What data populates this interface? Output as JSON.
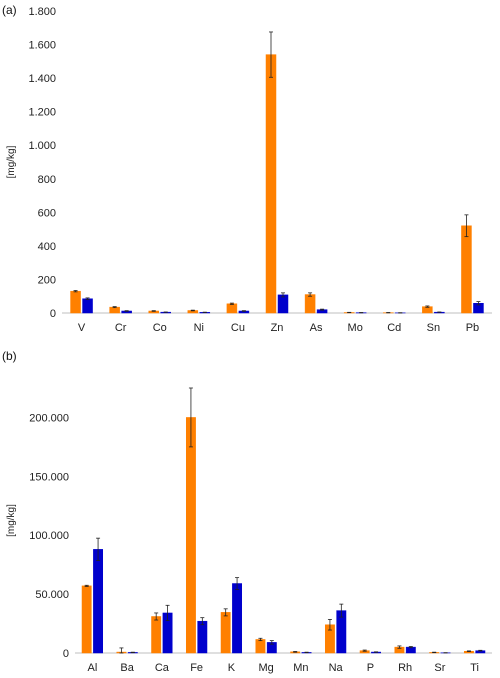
{
  "chart_data": [
    {
      "type": "bar",
      "panel_label": "(a)",
      "ylabel": "[mg/kg]",
      "ylim": [
        0,
        1800
      ],
      "yticks": [
        0,
        200,
        400,
        600,
        800,
        1000,
        1200,
        1400,
        1600,
        1800
      ],
      "ytick_labels": [
        "0",
        "200",
        "400",
        "600",
        "800",
        "1.000",
        "1.200",
        "1.400",
        "1.600",
        "1.800"
      ],
      "grid": false,
      "categories": [
        "V",
        "Cr",
        "Co",
        "Ni",
        "Cu",
        "Zn",
        "As",
        "Mo",
        "Cd",
        "Sn",
        "Pb"
      ],
      "series": [
        {
          "color": "#ff8000",
          "values": [
            130,
            35,
            12,
            15,
            55,
            1540,
            110,
            3,
            2,
            38,
            520
          ],
          "errors": [
            4,
            3,
            2,
            2,
            4,
            135,
            10,
            1,
            1,
            4,
            65
          ]
        },
        {
          "color": "#0000cc",
          "values": [
            85,
            12,
            5,
            4,
            12,
            108,
            20,
            2,
            1,
            5,
            58
          ],
          "errors": [
            5,
            2,
            1,
            1,
            2,
            12,
            3,
            1,
            1,
            1,
            10
          ]
        }
      ]
    },
    {
      "type": "bar",
      "panel_label": "(b)",
      "ylabel": "[mg/kg]",
      "ylim": [
        0,
        225000
      ],
      "yticks": [
        0,
        50000,
        100000,
        150000,
        200000
      ],
      "ytick_labels": [
        "0",
        "50.000",
        "100.000",
        "150.000",
        "200.000"
      ],
      "grid": false,
      "categories": [
        "Al",
        "Ba",
        "Ca",
        "Fe",
        "K",
        "Mg",
        "Mn",
        "Na",
        "P",
        "Rh",
        "Sr",
        "Ti"
      ],
      "series": [
        {
          "color": "#ff8000",
          "values": [
            57000,
            800,
            31000,
            200000,
            34500,
            11500,
            1000,
            24000,
            2000,
            5000,
            500,
            1500
          ],
          "errors": [
            500,
            3500,
            3000,
            25000,
            3000,
            1000,
            300,
            4500,
            500,
            1000,
            200,
            300
          ]
        },
        {
          "color": "#0000cc",
          "values": [
            88000,
            500,
            34000,
            27000,
            59000,
            9000,
            500,
            36000,
            800,
            5000,
            200,
            2000
          ],
          "errors": [
            9500,
            200,
            6500,
            3000,
            5000,
            1500,
            200,
            5500,
            200,
            500,
            100,
            300
          ]
        }
      ]
    }
  ]
}
